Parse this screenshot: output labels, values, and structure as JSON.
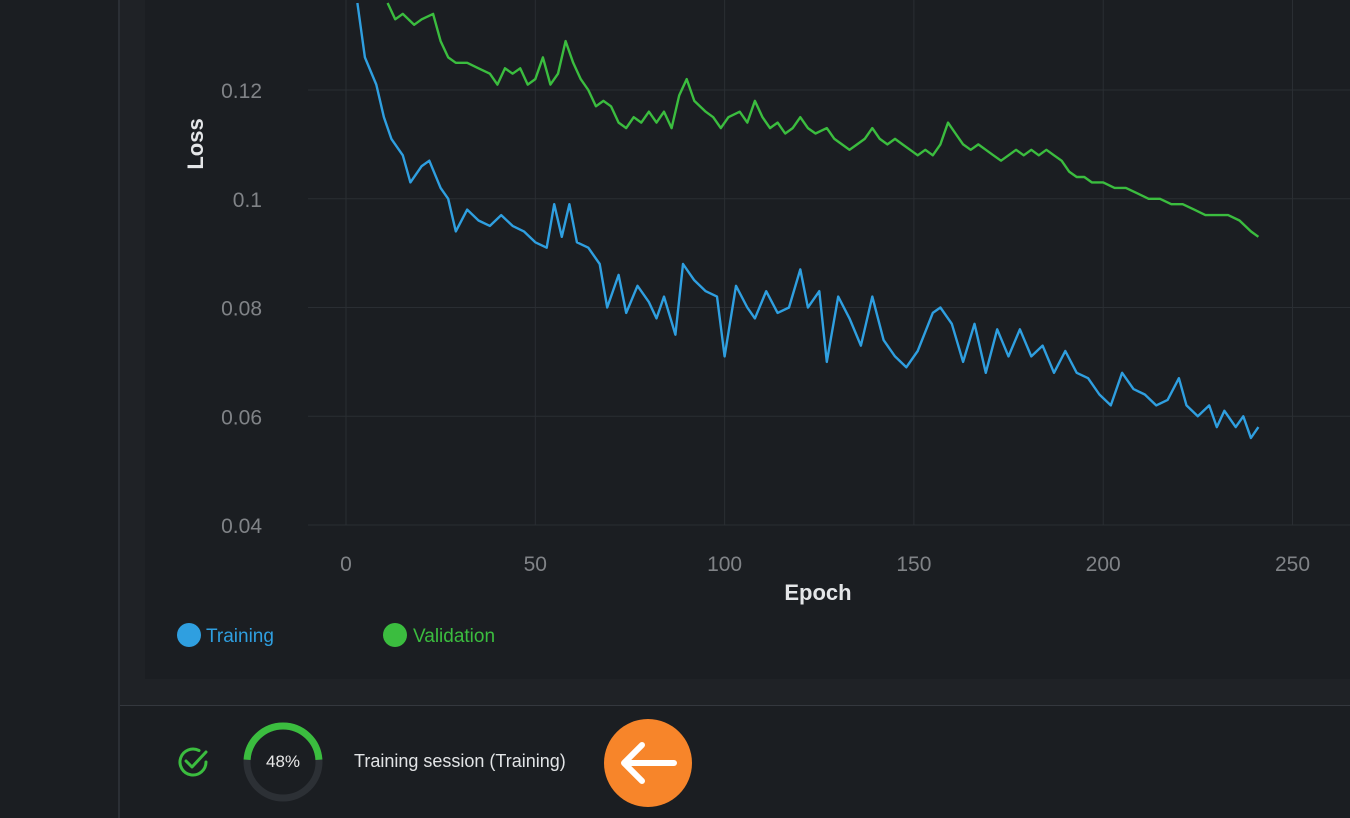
{
  "chart_data": {
    "type": "line",
    "xlabel": "Epoch",
    "ylabel": "Loss",
    "xlim": [
      -5,
      255
    ],
    "ylim": [
      0.04,
      0.136
    ],
    "x_ticks": [
      0,
      50,
      100,
      150,
      200,
      250
    ],
    "y_ticks": [
      0.04,
      0.06,
      0.08,
      0.1,
      0.12
    ],
    "y_tick_labels": [
      "0.04",
      "0.06",
      "0.08",
      "0.1",
      "0.12"
    ],
    "grid": true,
    "legend_position": "bottom-left",
    "series": [
      {
        "name": "Training",
        "color": "#2f9fe0",
        "points": [
          [
            3,
            0.136
          ],
          [
            5,
            0.126
          ],
          [
            8,
            0.121
          ],
          [
            10,
            0.115
          ],
          [
            12,
            0.111
          ],
          [
            15,
            0.108
          ],
          [
            17,
            0.103
          ],
          [
            20,
            0.106
          ],
          [
            22,
            0.107
          ],
          [
            25,
            0.102
          ],
          [
            27,
            0.1
          ],
          [
            29,
            0.094
          ],
          [
            32,
            0.098
          ],
          [
            35,
            0.096
          ],
          [
            38,
            0.095
          ],
          [
            41,
            0.097
          ],
          [
            44,
            0.095
          ],
          [
            47,
            0.094
          ],
          [
            50,
            0.092
          ],
          [
            53,
            0.091
          ],
          [
            55,
            0.099
          ],
          [
            57,
            0.093
          ],
          [
            59,
            0.099
          ],
          [
            61,
            0.092
          ],
          [
            64,
            0.091
          ],
          [
            67,
            0.088
          ],
          [
            69,
            0.08
          ],
          [
            72,
            0.086
          ],
          [
            74,
            0.079
          ],
          [
            77,
            0.084
          ],
          [
            80,
            0.081
          ],
          [
            82,
            0.078
          ],
          [
            84,
            0.082
          ],
          [
            87,
            0.075
          ],
          [
            89,
            0.088
          ],
          [
            92,
            0.085
          ],
          [
            95,
            0.083
          ],
          [
            98,
            0.082
          ],
          [
            100,
            0.071
          ],
          [
            103,
            0.084
          ],
          [
            106,
            0.08
          ],
          [
            108,
            0.078
          ],
          [
            111,
            0.083
          ],
          [
            114,
            0.079
          ],
          [
            117,
            0.08
          ],
          [
            120,
            0.087
          ],
          [
            122,
            0.08
          ],
          [
            125,
            0.083
          ],
          [
            127,
            0.07
          ],
          [
            130,
            0.082
          ],
          [
            133,
            0.078
          ],
          [
            136,
            0.073
          ],
          [
            139,
            0.082
          ],
          [
            142,
            0.074
          ],
          [
            145,
            0.071
          ],
          [
            148,
            0.069
          ],
          [
            151,
            0.072
          ],
          [
            155,
            0.079
          ],
          [
            157,
            0.08
          ],
          [
            160,
            0.077
          ],
          [
            163,
            0.07
          ],
          [
            166,
            0.077
          ],
          [
            169,
            0.068
          ],
          [
            172,
            0.076
          ],
          [
            175,
            0.071
          ],
          [
            178,
            0.076
          ],
          [
            181,
            0.071
          ],
          [
            184,
            0.073
          ],
          [
            187,
            0.068
          ],
          [
            190,
            0.072
          ],
          [
            193,
            0.068
          ],
          [
            196,
            0.067
          ],
          [
            199,
            0.064
          ],
          [
            202,
            0.062
          ],
          [
            205,
            0.068
          ],
          [
            208,
            0.065
          ],
          [
            211,
            0.064
          ],
          [
            214,
            0.062
          ],
          [
            217,
            0.063
          ],
          [
            220,
            0.067
          ],
          [
            222,
            0.062
          ],
          [
            225,
            0.06
          ],
          [
            228,
            0.062
          ],
          [
            230,
            0.058
          ],
          [
            232,
            0.061
          ],
          [
            235,
            0.058
          ],
          [
            237,
            0.06
          ],
          [
            239,
            0.056
          ],
          [
            241,
            0.058
          ]
        ]
      },
      {
        "name": "Validation",
        "color": "#3bbd3f",
        "points": [
          [
            11,
            0.136
          ],
          [
            13,
            0.133
          ],
          [
            15,
            0.134
          ],
          [
            18,
            0.132
          ],
          [
            20,
            0.133
          ],
          [
            23,
            0.134
          ],
          [
            25,
            0.129
          ],
          [
            27,
            0.126
          ],
          [
            29,
            0.125
          ],
          [
            32,
            0.125
          ],
          [
            35,
            0.124
          ],
          [
            38,
            0.123
          ],
          [
            40,
            0.121
          ],
          [
            42,
            0.124
          ],
          [
            44,
            0.123
          ],
          [
            46,
            0.124
          ],
          [
            48,
            0.121
          ],
          [
            50,
            0.122
          ],
          [
            52,
            0.126
          ],
          [
            54,
            0.121
          ],
          [
            56,
            0.123
          ],
          [
            58,
            0.129
          ],
          [
            60,
            0.125
          ],
          [
            62,
            0.122
          ],
          [
            64,
            0.12
          ],
          [
            66,
            0.117
          ],
          [
            68,
            0.118
          ],
          [
            70,
            0.117
          ],
          [
            72,
            0.114
          ],
          [
            74,
            0.113
          ],
          [
            76,
            0.115
          ],
          [
            78,
            0.114
          ],
          [
            80,
            0.116
          ],
          [
            82,
            0.114
          ],
          [
            84,
            0.116
          ],
          [
            86,
            0.113
          ],
          [
            88,
            0.119
          ],
          [
            90,
            0.122
          ],
          [
            92,
            0.118
          ],
          [
            95,
            0.116
          ],
          [
            97,
            0.115
          ],
          [
            99,
            0.113
          ],
          [
            101,
            0.115
          ],
          [
            104,
            0.116
          ],
          [
            106,
            0.114
          ],
          [
            108,
            0.118
          ],
          [
            110,
            0.115
          ],
          [
            112,
            0.113
          ],
          [
            114,
            0.114
          ],
          [
            116,
            0.112
          ],
          [
            118,
            0.113
          ],
          [
            120,
            0.115
          ],
          [
            122,
            0.113
          ],
          [
            124,
            0.112
          ],
          [
            127,
            0.113
          ],
          [
            129,
            0.111
          ],
          [
            131,
            0.11
          ],
          [
            133,
            0.109
          ],
          [
            135,
            0.11
          ],
          [
            137,
            0.111
          ],
          [
            139,
            0.113
          ],
          [
            141,
            0.111
          ],
          [
            143,
            0.11
          ],
          [
            145,
            0.111
          ],
          [
            147,
            0.11
          ],
          [
            149,
            0.109
          ],
          [
            151,
            0.108
          ],
          [
            153,
            0.109
          ],
          [
            155,
            0.108
          ],
          [
            157,
            0.11
          ],
          [
            159,
            0.114
          ],
          [
            161,
            0.112
          ],
          [
            163,
            0.11
          ],
          [
            165,
            0.109
          ],
          [
            167,
            0.11
          ],
          [
            169,
            0.109
          ],
          [
            171,
            0.108
          ],
          [
            173,
            0.107
          ],
          [
            175,
            0.108
          ],
          [
            177,
            0.109
          ],
          [
            179,
            0.108
          ],
          [
            181,
            0.109
          ],
          [
            183,
            0.108
          ],
          [
            185,
            0.109
          ],
          [
            187,
            0.108
          ],
          [
            189,
            0.107
          ],
          [
            191,
            0.105
          ],
          [
            193,
            0.104
          ],
          [
            195,
            0.104
          ],
          [
            197,
            0.103
          ],
          [
            200,
            0.103
          ],
          [
            203,
            0.102
          ],
          [
            206,
            0.102
          ],
          [
            209,
            0.101
          ],
          [
            212,
            0.1
          ],
          [
            215,
            0.1
          ],
          [
            218,
            0.099
          ],
          [
            221,
            0.099
          ],
          [
            224,
            0.098
          ],
          [
            227,
            0.097
          ],
          [
            230,
            0.097
          ],
          [
            233,
            0.097
          ],
          [
            236,
            0.096
          ],
          [
            239,
            0.094
          ],
          [
            241,
            0.093
          ]
        ]
      }
    ]
  },
  "legend": {
    "training_label": "Training",
    "training_color": "#2f9fe0",
    "validation_label": "Validation",
    "validation_color": "#3bbd3f"
  },
  "status_bar": {
    "status_icon": "check-circle-icon",
    "status_color": "#3bbd3f",
    "progress_value": 0.48,
    "progress_text": "48%",
    "session_label": "Training session (Training)",
    "back_icon": "arrow-left-icon",
    "back_button_color": "#f7852a"
  }
}
